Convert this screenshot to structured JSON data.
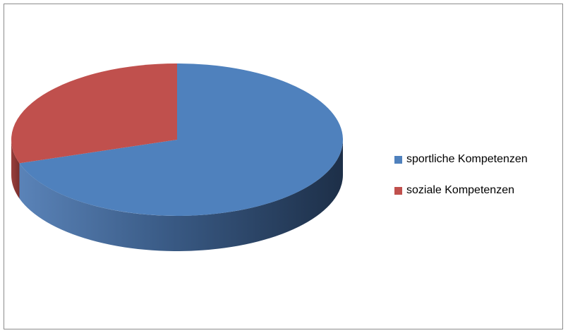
{
  "chart_data": {
    "type": "pie",
    "style": "3d",
    "title": "",
    "legend_position": "right",
    "slices": [
      {
        "label": "sportliche Kompetenzen",
        "value": 70,
        "color": "#4f81bd"
      },
      {
        "label": "soziale Kompetenzen",
        "value": 30,
        "color": "#c0504d"
      }
    ]
  }
}
